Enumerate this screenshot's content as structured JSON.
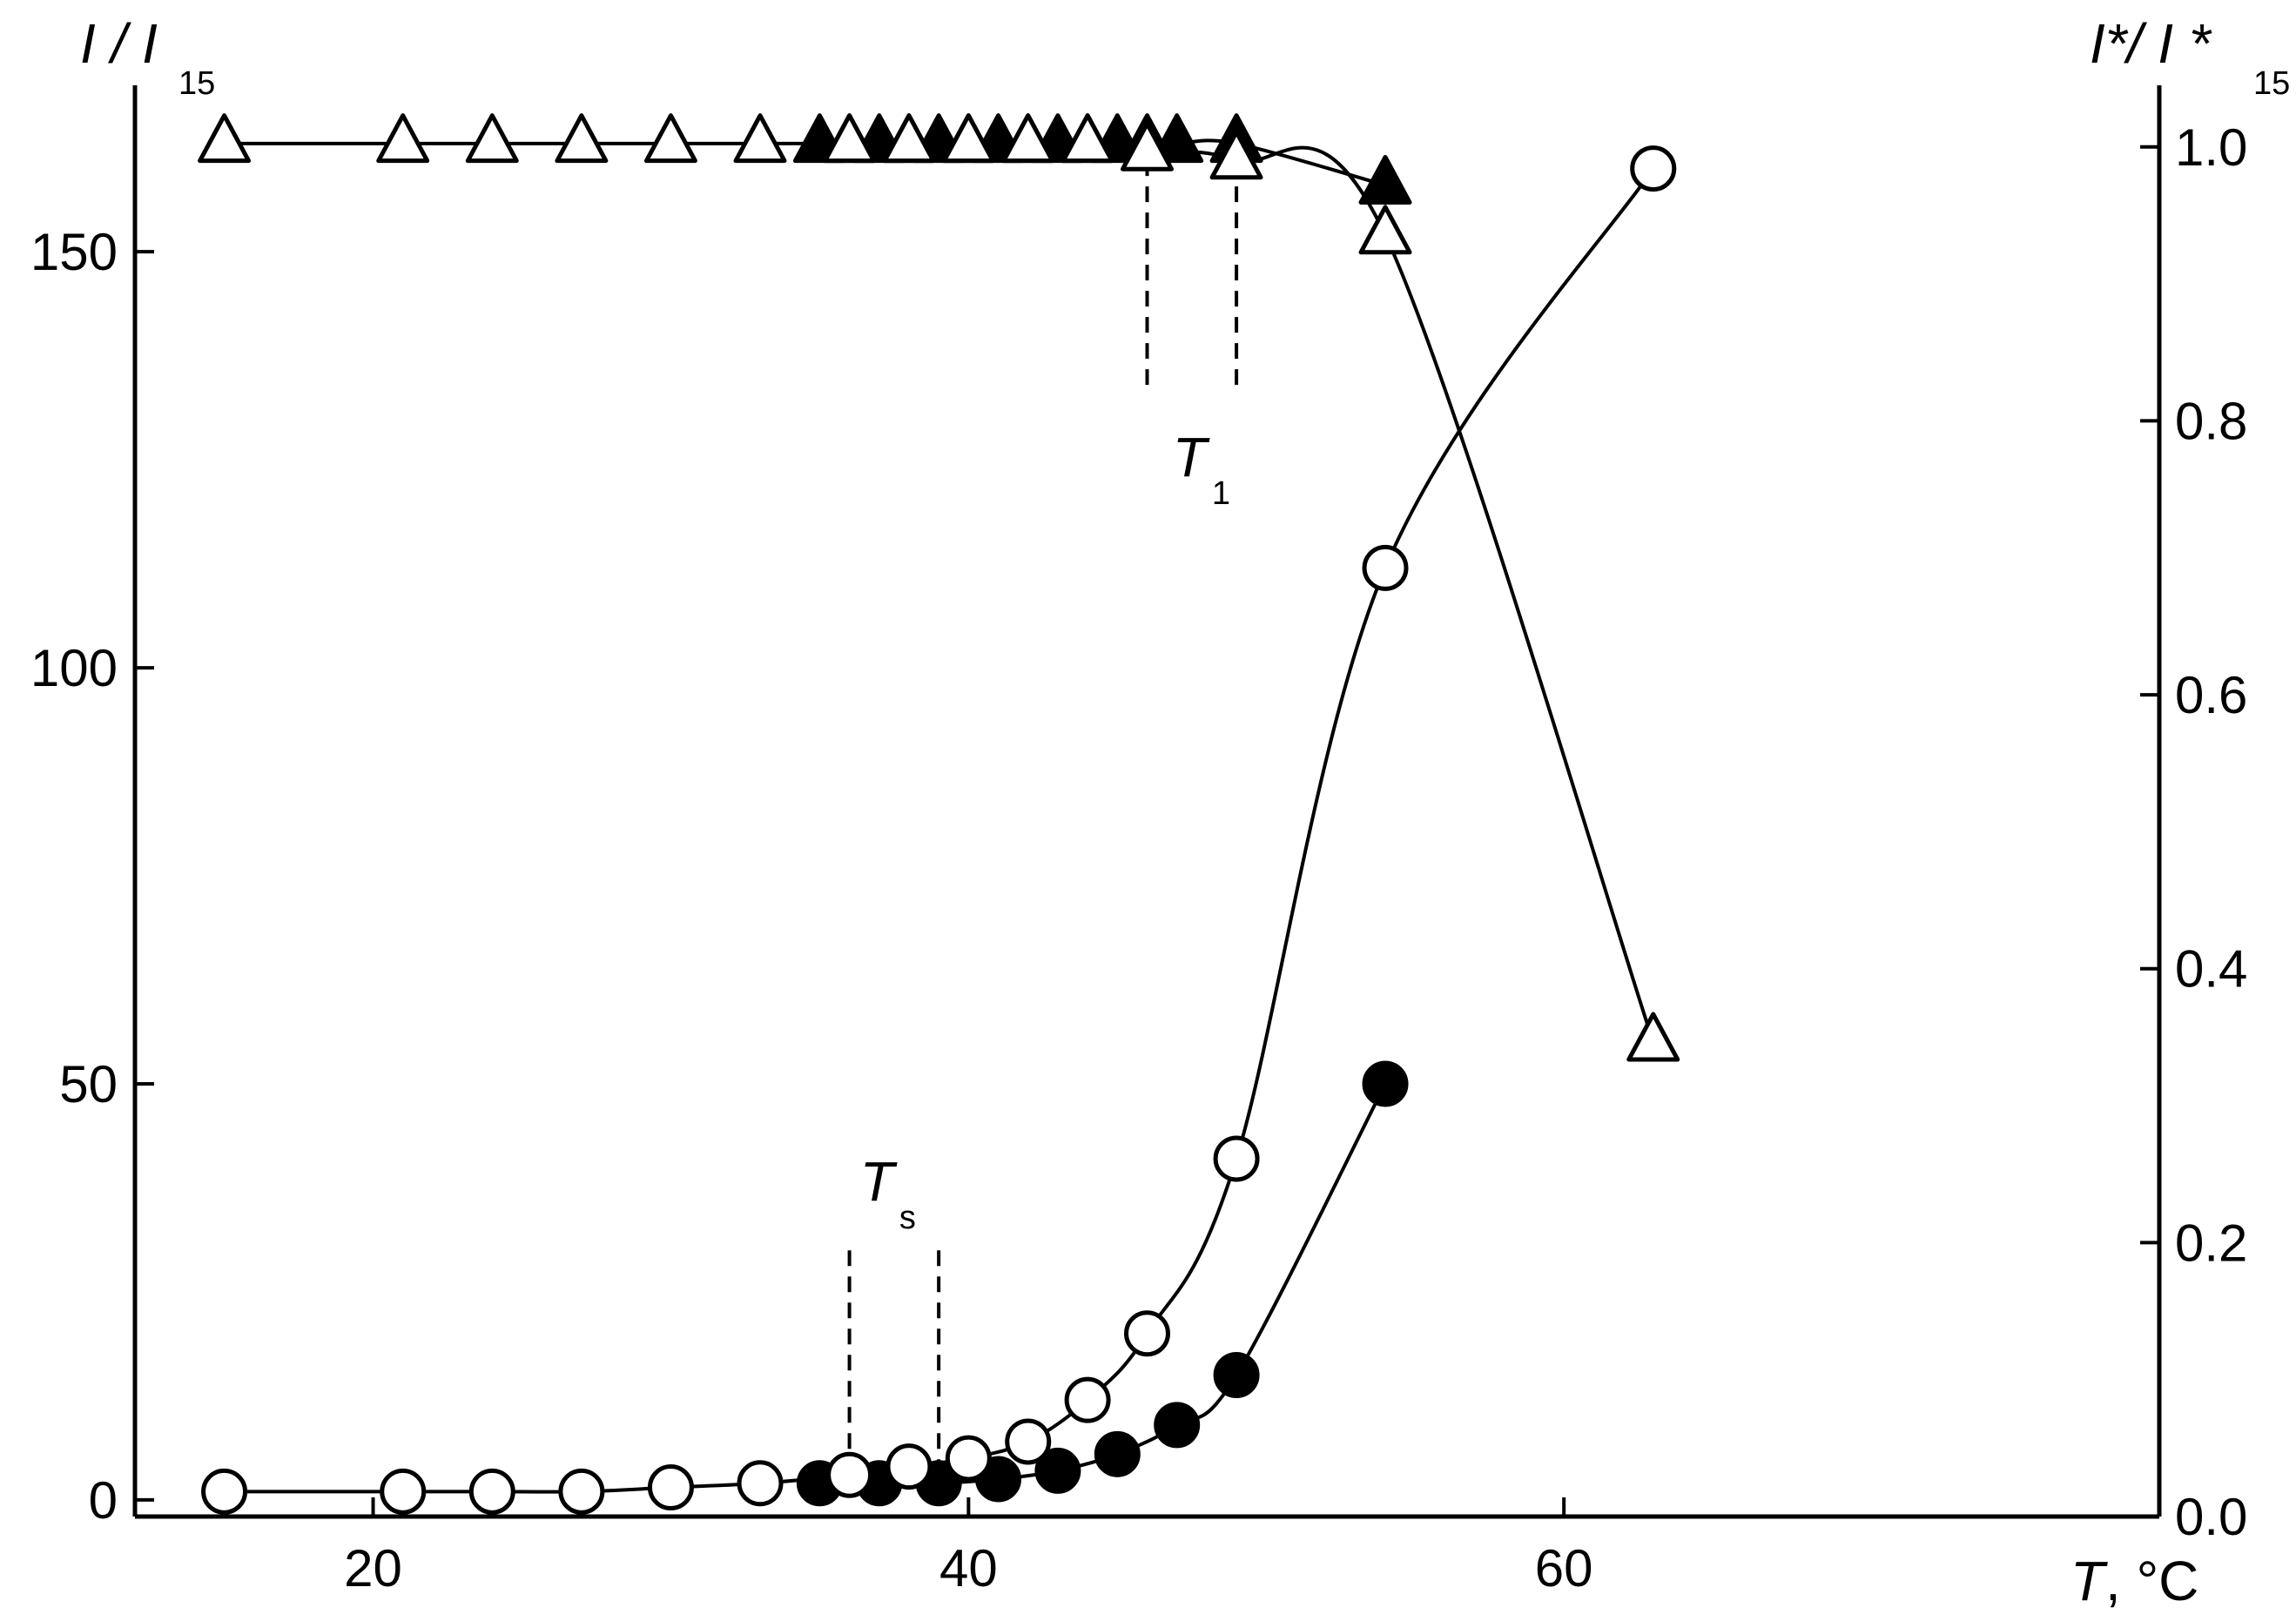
{
  "chart_data": {
    "type": "scatter",
    "title": "",
    "xlabel": {
      "main": "T",
      "unit": ", °C"
    },
    "ylabel_left": {
      "main": "I / I",
      "sub": "15"
    },
    "ylabel_right": {
      "main": "I*/ I *",
      "sub": "15"
    },
    "xlim": [
      12,
      80
    ],
    "ylim_left": [
      -2,
      170
    ],
    "ylim_right": [
      0,
      1.045
    ],
    "x_ticks": [
      20,
      40,
      60
    ],
    "y_left_ticks": [
      0,
      50,
      100,
      150
    ],
    "y_right_ticks": [
      "0.0",
      "0.2",
      "0.4",
      "0.6",
      "0.8",
      "1.0"
    ],
    "grid": false,
    "legend": "none",
    "series": [
      {
        "marker": "open-triangle",
        "axis": "left",
        "x": [
          15,
          21,
          24,
          27,
          30,
          33,
          36,
          38,
          40,
          42,
          44,
          46,
          49,
          54,
          63
        ],
        "y": [
          163,
          163,
          163,
          163,
          163,
          163,
          163,
          163,
          163,
          163,
          163,
          162,
          161,
          152,
          55
        ]
      },
      {
        "marker": "filled-triangle",
        "axis": "left",
        "x": [
          35,
          36,
          37,
          38,
          39,
          40,
          41,
          42,
          43,
          44,
          45,
          46,
          47,
          49,
          54
        ],
        "y": [
          163,
          163,
          163,
          163,
          163,
          163,
          163,
          163,
          163,
          163,
          163,
          163,
          163,
          163,
          158
        ]
      },
      {
        "marker": "open-circle",
        "axis": "left",
        "x": [
          15,
          21,
          24,
          27,
          30,
          33,
          36,
          38,
          40,
          42,
          44,
          46,
          49,
          54,
          63
        ],
        "y": [
          1,
          1,
          1,
          1,
          1.5,
          2,
          3,
          4,
          5,
          7,
          12,
          20,
          41,
          112,
          160
        ]
      },
      {
        "marker": "filled-circle",
        "axis": "left",
        "x": [
          35,
          37,
          39,
          41,
          43,
          45,
          47,
          49,
          54
        ],
        "y": [
          2,
          2,
          2,
          2.5,
          3.5,
          5.5,
          9,
          15,
          50
        ]
      }
    ],
    "annotations": [
      {
        "text": "T",
        "sub": "1",
        "x": 48,
        "y": 123,
        "markers_x": [
          46,
          49
        ],
        "marker_y_from": 134,
        "marker_y_to": 163
      },
      {
        "text": "T",
        "sub": "s",
        "x": 37.5,
        "y": 36,
        "markers_x": [
          36,
          39
        ],
        "marker_y_from": 3,
        "marker_y_to": 30
      }
    ]
  }
}
